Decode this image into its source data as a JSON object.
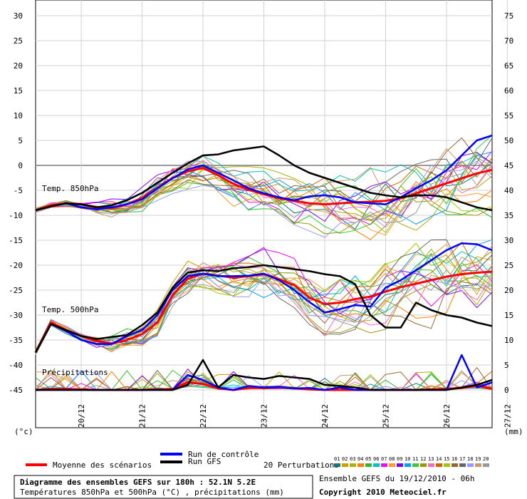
{
  "footer": {
    "title": "Diagramme des ensembles GEFS sur 180h : 52.1N 5.2E",
    "subtitle": "Températures 850hPa et 500hPa (°C) , précipitations (mm)",
    "run_info": "Ensemble GEFS du 19/12/2010 - 06h",
    "copyright": "Copyright 2010 Meteociel.fr"
  },
  "legend": {
    "mean": "Moyenne des scénarios",
    "control": "Run de contrôle",
    "gfs": "Run GFS",
    "perturbations": "20 Perturbations",
    "perturbation_ids": [
      "01",
      "02",
      "03",
      "04",
      "05",
      "06",
      "07",
      "08",
      "09",
      "10",
      "11",
      "12",
      "13",
      "14",
      "15",
      "16",
      "17",
      "18",
      "19",
      "20"
    ]
  },
  "axis": {
    "left_unit": "(°c)",
    "right_unit": "(mm)",
    "left_ticks": [
      30,
      25,
      20,
      15,
      10,
      5,
      0,
      -5,
      -10,
      -15,
      -20,
      -25,
      -30,
      -35,
      -40,
      -45
    ],
    "right_ticks": [
      75,
      70,
      65,
      60,
      55,
      50,
      45,
      40,
      35,
      30,
      25,
      20,
      15,
      10,
      5,
      0
    ],
    "x_labels": [
      "20/12",
      "21/12",
      "22/12",
      "23/12",
      "24/12",
      "25/12",
      "26/12",
      "27/12"
    ]
  },
  "panel_labels": {
    "t850": "Temp. 850hPa",
    "t500": "Temp. 500hPa",
    "precip": "Précipitations"
  },
  "colors": {
    "mean": "#ff0000",
    "control": "#0000ff",
    "gfs": "#000000",
    "perturbations": [
      "#0b7a7a",
      "#c8a000",
      "#b0b000",
      "#ff7f00",
      "#2db82d",
      "#00c0c0",
      "#ff00ff",
      "#ff9933",
      "#7f00ff",
      "#00a0ff",
      "#33cc33",
      "#999900",
      "#ff66cc",
      "#cc6600",
      "#99cc00",
      "#996633",
      "#666666",
      "#9999ff",
      "#cc9966",
      "#999999"
    ]
  },
  "chart_data": {
    "type": "line",
    "x": [
      0,
      6,
      12,
      18,
      24,
      30,
      36,
      42,
      48,
      54,
      60,
      66,
      72,
      78,
      84,
      90,
      96,
      102,
      108,
      114,
      120,
      126,
      132,
      138,
      144,
      150,
      156,
      162,
      168,
      174,
      180
    ],
    "series": [
      {
        "name": "Moyenne des scénarios",
        "panel": "t850",
        "values": [
          -9,
          -8,
          -7.6,
          -7.8,
          -8.4,
          -8.6,
          -7.8,
          -6.5,
          -4.5,
          -2.5,
          -1.2,
          -0.5,
          -2,
          -3.7,
          -4.9,
          -5.8,
          -6.6,
          -7.1,
          -7.6,
          -7.8,
          -7.6,
          -7.4,
          -7.3,
          -7.1,
          -6.6,
          -5.6,
          -4.6,
          -3.6,
          -2.6,
          -1.6,
          -0.9
        ]
      },
      {
        "name": "Run de contrôle",
        "panel": "t850",
        "values": [
          -9,
          -8.2,
          -7.6,
          -8.4,
          -8.8,
          -8.4,
          -7.8,
          -6.8,
          -4.6,
          -2.6,
          -0.8,
          0,
          -1.5,
          -3,
          -4.6,
          -5.6,
          -6.4,
          -7,
          -6.2,
          -6,
          -6.4,
          -7.4,
          -7.6,
          -7.8,
          -6.4,
          -4.6,
          -3,
          -1,
          2,
          5,
          6
        ]
      },
      {
        "name": "Run GFS",
        "panel": "t850",
        "values": [
          -9,
          -8.2,
          -7.6,
          -7.8,
          -8.4,
          -8,
          -7,
          -5.5,
          -3.5,
          -1.5,
          0.4,
          2,
          2.2,
          3,
          3.4,
          3.8,
          2,
          0,
          -1.5,
          -2.5,
          -3.5,
          -4.5,
          -5.5,
          -6,
          -6.4,
          -6,
          -6,
          -6.4,
          -7.4,
          -8.4,
          -9
        ]
      },
      {
        "name": "Moyenne des scénarios",
        "panel": "t500",
        "values": [
          -37.5,
          -31.5,
          -33,
          -34.2,
          -35.2,
          -35.7,
          -35,
          -33.8,
          -31.5,
          -26,
          -22.7,
          -21.7,
          -22.1,
          -22.5,
          -22.2,
          -21.8,
          -22.8,
          -24,
          -26.5,
          -27.8,
          -27.5,
          -26.8,
          -26.3,
          -25.3,
          -24.4,
          -23.7,
          -23,
          -22.3,
          -21.8,
          -21.5,
          -21.3
        ]
      },
      {
        "name": "Run de contrôle",
        "panel": "t500",
        "values": [
          -37.5,
          -31.8,
          -33.2,
          -35,
          -35.8,
          -35.8,
          -34.2,
          -33,
          -30,
          -25,
          -22.2,
          -21.7,
          -22.2,
          -22.2,
          -22.1,
          -21.7,
          -23,
          -25,
          -27.4,
          -29.5,
          -28.8,
          -28,
          -28.3,
          -24.5,
          -23,
          -21,
          -19,
          -17,
          -15.6,
          -15.8,
          -17
        ]
      },
      {
        "name": "Run GFS",
        "panel": "t500",
        "values": [
          -37.5,
          -31.8,
          -33,
          -34.2,
          -34.8,
          -34.4,
          -34,
          -32,
          -29.5,
          -24.5,
          -21.5,
          -21,
          -21.2,
          -20.6,
          -20.4,
          -20,
          -20.4,
          -20.8,
          -21.2,
          -21.8,
          -22.2,
          -23.8,
          -30,
          -32.5,
          -32.5,
          -27.5,
          -29,
          -30,
          -30.5,
          -31.5,
          -32.2
        ]
      },
      {
        "name": "Moyenne des scénarios",
        "panel": "precip",
        "values": [
          0,
          0.2,
          0.2,
          0.1,
          0,
          0,
          0,
          0,
          0.1,
          0.2,
          1.5,
          1.2,
          0.3,
          0,
          0.4,
          0.4,
          0.5,
          0.3,
          0.1,
          0,
          0,
          0,
          0,
          0,
          0,
          0,
          0.1,
          0.2,
          0.4,
          0.9,
          0.2
        ]
      },
      {
        "name": "Run de contrôle",
        "panel": "precip",
        "values": [
          0,
          0,
          0,
          0,
          0,
          0,
          0,
          0,
          0,
          0,
          3,
          2,
          0.5,
          0,
          0.8,
          0.5,
          0.6,
          0.3,
          0.4,
          0,
          0.5,
          0,
          0,
          0,
          0,
          0,
          0,
          0,
          7,
          0.5,
          1.5
        ]
      },
      {
        "name": "Run GFS",
        "panel": "precip",
        "values": [
          0,
          0,
          0,
          0,
          0,
          0,
          0,
          0,
          0,
          0,
          1,
          6,
          0.5,
          3,
          2.5,
          2.2,
          2.8,
          2.5,
          2.2,
          1,
          0.8,
          0.5,
          0,
          0,
          0,
          0,
          0,
          0,
          0.5,
          1,
          2
        ]
      }
    ]
  }
}
